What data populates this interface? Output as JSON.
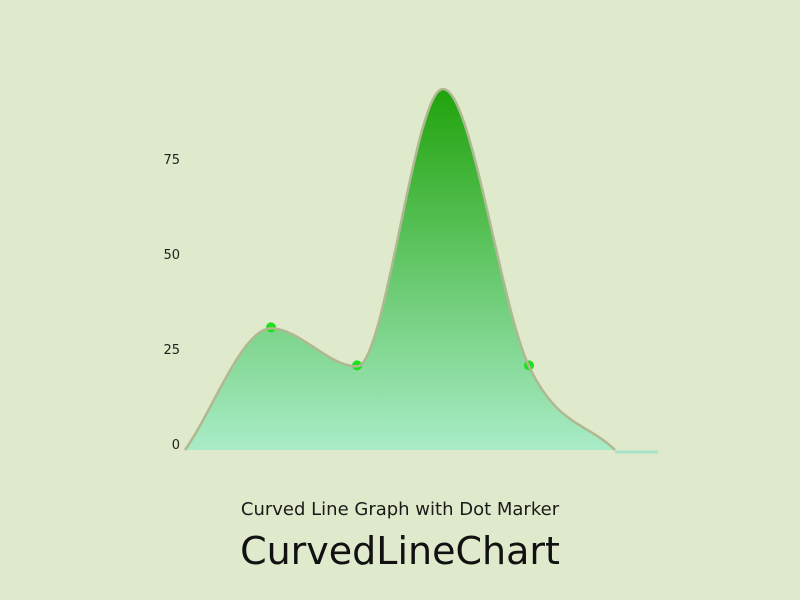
{
  "chart_data": {
    "type": "area",
    "title": "CurvedLineChart",
    "subtitle": "Curved Line Graph with Dot Marker",
    "x": [
      0,
      1,
      2,
      3,
      4,
      5
    ],
    "values": [
      0,
      32,
      22,
      95,
      22,
      0
    ],
    "markers": [
      1,
      2,
      4
    ],
    "y_ticks": [
      0,
      25,
      50,
      75
    ],
    "ylim": [
      0,
      95
    ],
    "grid": false,
    "legend": "none",
    "colors": {
      "background": "#dfe9cb",
      "area_top": "#21a30c",
      "area_bottom": "#a9ecc8",
      "line": "#b0b892",
      "marker": "#1fe01f",
      "baseline_tail": "#a9e2c6"
    }
  }
}
